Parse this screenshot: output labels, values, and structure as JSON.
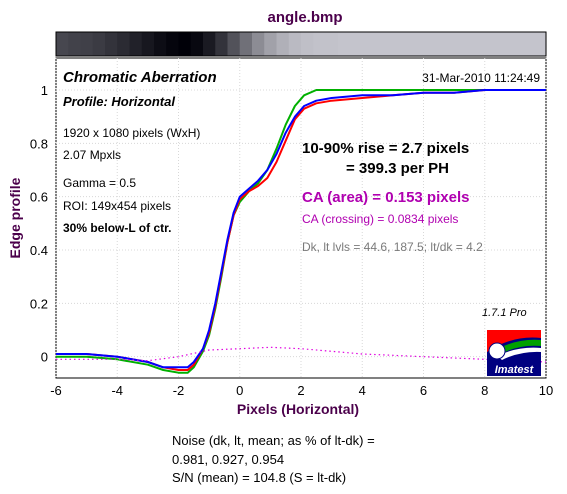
{
  "chart_data": {
    "type": "line",
    "title": "angle.bmp",
    "xlabel": "Pixels (Horizontal)",
    "ylabel": "Edge profile",
    "xlim": [
      -6,
      10
    ],
    "ylim": [
      -0.08,
      1.12
    ],
    "x_ticks": [
      "-6",
      "-4",
      "-2",
      "0",
      "2",
      "4",
      "6",
      "8",
      "10"
    ],
    "y_ticks": [
      "0",
      "0.2",
      "0.4",
      "0.6",
      "0.8",
      "1"
    ],
    "grid": true,
    "series": [
      {
        "color": "#00b000",
        "points": [
          [
            -6,
            0.0
          ],
          [
            -5,
            0.0
          ],
          [
            -4,
            -0.01
          ],
          [
            -3,
            -0.03
          ],
          [
            -2.5,
            -0.05
          ],
          [
            -2,
            -0.06
          ],
          [
            -1.7,
            -0.06
          ],
          [
            -1.5,
            -0.04
          ],
          [
            -1.2,
            0.02
          ],
          [
            -1,
            0.08
          ],
          [
            -0.8,
            0.18
          ],
          [
            -0.6,
            0.3
          ],
          [
            -0.4,
            0.43
          ],
          [
            -0.2,
            0.53
          ],
          [
            0,
            0.58
          ],
          [
            0.3,
            0.62
          ],
          [
            0.6,
            0.65
          ],
          [
            0.9,
            0.7
          ],
          [
            1.2,
            0.78
          ],
          [
            1.5,
            0.87
          ],
          [
            1.8,
            0.94
          ],
          [
            2.1,
            0.98
          ],
          [
            2.5,
            1.0
          ],
          [
            3,
            1.0
          ],
          [
            4,
            1.0
          ],
          [
            5,
            1.0
          ],
          [
            6,
            1.0
          ],
          [
            7,
            1.0
          ],
          [
            8,
            1.0
          ],
          [
            9,
            1.0
          ],
          [
            10,
            1.0
          ]
        ]
      },
      {
        "color": "#ff0000",
        "points": [
          [
            -6,
            0.01
          ],
          [
            -5,
            0.01
          ],
          [
            -4,
            0.0
          ],
          [
            -3,
            -0.02
          ],
          [
            -2.5,
            -0.04
          ],
          [
            -2,
            -0.05
          ],
          [
            -1.7,
            -0.05
          ],
          [
            -1.5,
            -0.03
          ],
          [
            -1.2,
            0.03
          ],
          [
            -1,
            0.09
          ],
          [
            -0.8,
            0.19
          ],
          [
            -0.6,
            0.31
          ],
          [
            -0.4,
            0.43
          ],
          [
            -0.2,
            0.53
          ],
          [
            0,
            0.59
          ],
          [
            0.3,
            0.62
          ],
          [
            0.6,
            0.64
          ],
          [
            0.9,
            0.67
          ],
          [
            1.2,
            0.73
          ],
          [
            1.5,
            0.81
          ],
          [
            1.8,
            0.89
          ],
          [
            2.1,
            0.93
          ],
          [
            2.5,
            0.95
          ],
          [
            3,
            0.96
          ],
          [
            4,
            0.97
          ],
          [
            5,
            0.98
          ],
          [
            6,
            0.99
          ],
          [
            7,
            0.99
          ],
          [
            8,
            1.0
          ],
          [
            9,
            1.0
          ],
          [
            10,
            1.0
          ]
        ]
      },
      {
        "color": "#0000ff",
        "points": [
          [
            -6,
            0.01
          ],
          [
            -5,
            0.01
          ],
          [
            -4,
            0.0
          ],
          [
            -3,
            -0.02
          ],
          [
            -2.5,
            -0.04
          ],
          [
            -2,
            -0.04
          ],
          [
            -1.7,
            -0.04
          ],
          [
            -1.5,
            -0.02
          ],
          [
            -1.2,
            0.03
          ],
          [
            -1,
            0.1
          ],
          [
            -0.8,
            0.2
          ],
          [
            -0.6,
            0.32
          ],
          [
            -0.4,
            0.44
          ],
          [
            -0.2,
            0.54
          ],
          [
            0,
            0.6
          ],
          [
            0.3,
            0.63
          ],
          [
            0.6,
            0.66
          ],
          [
            0.9,
            0.7
          ],
          [
            1.2,
            0.76
          ],
          [
            1.5,
            0.84
          ],
          [
            1.8,
            0.9
          ],
          [
            2.1,
            0.94
          ],
          [
            2.5,
            0.96
          ],
          [
            3,
            0.97
          ],
          [
            4,
            0.98
          ],
          [
            5,
            0.98
          ],
          [
            6,
            0.99
          ],
          [
            7,
            0.99
          ],
          [
            8,
            1.0
          ],
          [
            9,
            1.0
          ],
          [
            10,
            1.0
          ]
        ]
      },
      {
        "color": "#e000e0",
        "dashed": true,
        "points": [
          [
            -6,
            -0.01
          ],
          [
            -4,
            -0.01
          ],
          [
            -3,
            -0.015
          ],
          [
            -2,
            0.0
          ],
          [
            -1,
            0.025
          ],
          [
            0,
            0.03
          ],
          [
            1,
            0.035
          ],
          [
            2,
            0.03
          ],
          [
            3,
            0.02
          ],
          [
            4,
            0.01
          ],
          [
            5,
            0.005
          ],
          [
            6,
            0.0
          ],
          [
            7,
            -0.005
          ],
          [
            8,
            -0.01
          ],
          [
            9,
            -0.015
          ],
          [
            10,
            -0.02
          ]
        ]
      }
    ]
  },
  "colorbar_steps": [
    0.28,
    0.26,
    0.25,
    0.23,
    0.2,
    0.17,
    0.13,
    0.09,
    0.05,
    0.02,
    0.0,
    0.03,
    0.1,
    0.2,
    0.32,
    0.44,
    0.55,
    0.63,
    0.69,
    0.73,
    0.75,
    0.76,
    0.76,
    0.77,
    0.77,
    0.77,
    0.77,
    0.77,
    0.77,
    0.77,
    0.77,
    0.77,
    0.77,
    0.77,
    0.77,
    0.77,
    0.77,
    0.77,
    0.77,
    0.77
  ],
  "panel": {
    "heading": "Chromatic Aberration",
    "subheading": "Profile: Horizontal",
    "timestamp": "31-Mar-2010 11:24:49",
    "info_lines": [
      "1920 x 1080 pixels (WxH)",
      "2.07 Mpxls",
      "Gamma = 0.5",
      "ROI: 149x454 pixels"
    ],
    "roi_location": "30% below-L of ctr.",
    "rise_line1": "10-90% rise = 2.7 pixels",
    "rise_line2": "= 399.3 per PH",
    "ca_area": "CA (area) = 0.153 pixels",
    "ca_crossing": "CA (crossing) = 0.0834 pixels",
    "dk_levels": "Dk, lt lvls = 44.6, 187.5;  lt/dk = 4.2",
    "version": "1.7.1  Pro",
    "logo_text": "Imatest"
  },
  "noise": {
    "line1": "Noise (dk, lt, mean; as % of lt-dk) =",
    "line2": "0.981,  0.927,  0.954",
    "line3": "S/N (mean) = 104.8  (S = lt-dk)"
  }
}
